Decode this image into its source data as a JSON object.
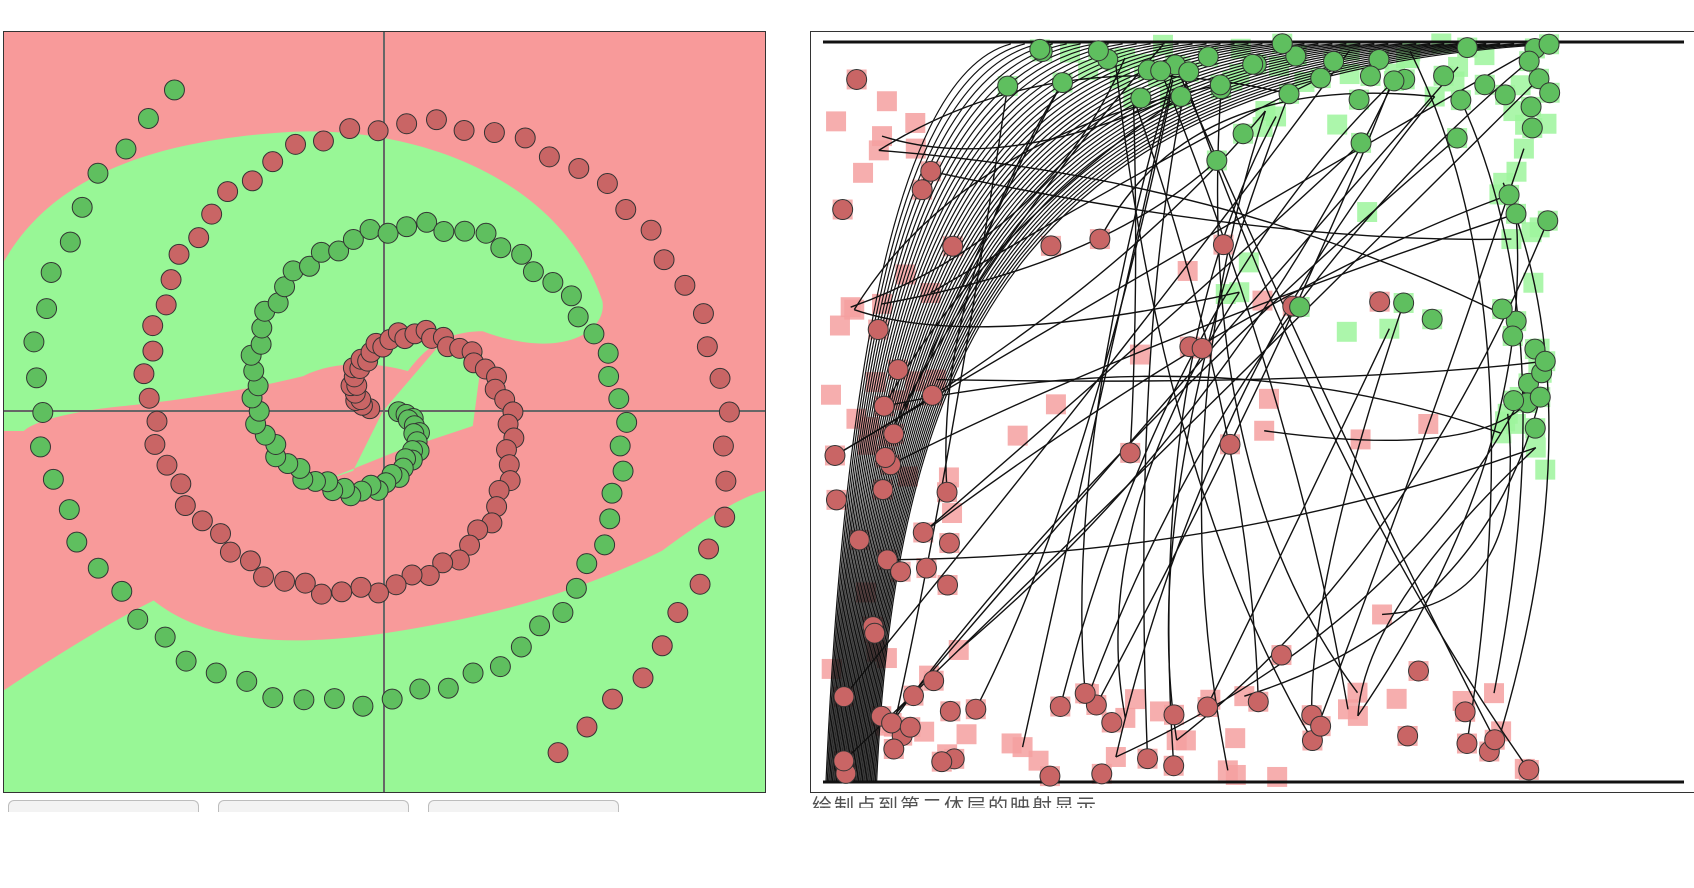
{
  "left_plot": {
    "title": "",
    "axes": "crosshair",
    "background_classes": [
      "red-region",
      "green-region"
    ],
    "series": [
      {
        "class": "red",
        "color": "#c96565"
      },
      {
        "class": "green",
        "color": "#5fbf5f"
      }
    ],
    "region_colors": {
      "red": "#f89a9a",
      "green": "#98f796"
    },
    "axis_color": "#666666"
  },
  "right_plot": {
    "title": "",
    "series": [
      {
        "class": "red",
        "color": "#c96565"
      },
      {
        "class": "green",
        "color": "#5fbf5f"
      }
    ],
    "marker_colors": {
      "red": "#f4a0a0",
      "green": "#9ef59c"
    },
    "line_color": "#111111"
  },
  "controls": {
    "buttons": [
      "",
      "",
      ""
    ],
    "status_text": "绘制点到第二体层的映射显示"
  }
}
